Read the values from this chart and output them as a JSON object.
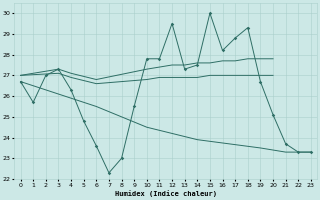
{
  "xlabel": "Humidex (Indice chaleur)",
  "ylabel": "",
  "xlim": [
    -0.5,
    23.5
  ],
  "ylim": [
    22,
    30.5
  ],
  "yticks": [
    22,
    23,
    24,
    25,
    26,
    27,
    28,
    29,
    30
  ],
  "xticks": [
    0,
    1,
    2,
    3,
    4,
    5,
    6,
    7,
    8,
    9,
    10,
    11,
    12,
    13,
    14,
    15,
    16,
    17,
    18,
    19,
    20,
    21,
    22,
    23
  ],
  "bg_color": "#cce8e6",
  "line_color": "#2e6e65",
  "grid_color": "#aacfcc",
  "series": [
    {
      "x": [
        0,
        1,
        2,
        3,
        4,
        5,
        6,
        7,
        8,
        9,
        10,
        11,
        12,
        13,
        14,
        15,
        16,
        17,
        18,
        19,
        20,
        21,
        22,
        23
      ],
      "y": [
        26.7,
        25.7,
        27.0,
        27.3,
        26.3,
        24.8,
        23.6,
        22.3,
        23.0,
        25.5,
        27.8,
        27.8,
        29.5,
        27.3,
        27.5,
        30.0,
        28.2,
        28.8,
        29.3,
        26.7,
        25.1,
        23.7,
        23.3,
        23.3
      ],
      "marker": true
    },
    {
      "x": [
        0,
        3,
        4,
        6,
        10,
        11,
        12,
        13,
        14,
        15,
        16,
        17,
        18,
        19,
        20
      ],
      "y": [
        27.0,
        27.3,
        27.1,
        26.8,
        27.3,
        27.4,
        27.5,
        27.5,
        27.6,
        27.6,
        27.7,
        27.7,
        27.8,
        27.8,
        27.8
      ],
      "marker": false
    },
    {
      "x": [
        0,
        3,
        4,
        6,
        10,
        11,
        12,
        13,
        14,
        15,
        16,
        17,
        18,
        19,
        20
      ],
      "y": [
        27.0,
        27.1,
        26.9,
        26.6,
        26.8,
        26.9,
        26.9,
        26.9,
        26.9,
        27.0,
        27.0,
        27.0,
        27.0,
        27.0,
        27.0
      ],
      "marker": false
    },
    {
      "x": [
        0,
        3,
        4,
        6,
        10,
        14,
        19,
        20,
        21,
        22,
        23
      ],
      "y": [
        26.7,
        26.1,
        25.9,
        25.5,
        24.5,
        23.9,
        23.5,
        23.4,
        23.3,
        23.3,
        23.3
      ],
      "marker": false
    }
  ],
  "figsize": [
    3.2,
    2.0
  ],
  "dpi": 100
}
